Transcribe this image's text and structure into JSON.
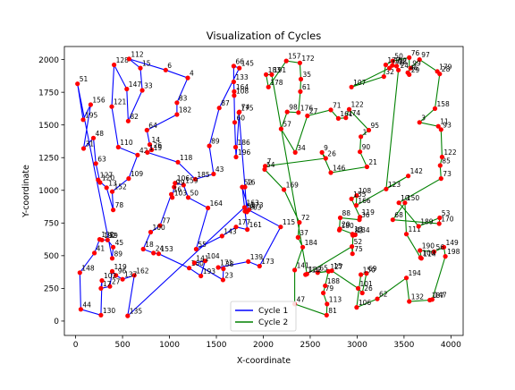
{
  "chart_data": {
    "type": "line",
    "title": "Visualization of Cycles",
    "xlabel": "X-coordinate",
    "ylabel": "Y-coordinate",
    "xlim": [
      -120,
      4130
    ],
    "ylim": [
      -110,
      2100
    ],
    "xticks": [
      0,
      500,
      1000,
      1500,
      2000,
      2500,
      3000,
      3500,
      4000
    ],
    "yticks": [
      0,
      250,
      500,
      750,
      1000,
      1250,
      1500,
      1750,
      2000
    ],
    "grid": false,
    "legend_position": "lower-center",
    "series": [
      {
        "name": "Cycle 1",
        "color": "#0000ff",
        "nodes": [
          [
            "51",
            20,
            1815
          ],
          [
            "195",
            80,
            1540
          ],
          [
            "156",
            160,
            1655
          ],
          [
            "31",
            85,
            1320
          ],
          [
            "48",
            190,
            1400
          ],
          [
            "63",
            215,
            1205
          ],
          [
            "120",
            260,
            1060
          ],
          [
            "127",
            240,
            1080
          ],
          [
            "13",
            330,
            1020
          ],
          [
            "78",
            400,
            850
          ],
          [
            "152",
            390,
            990
          ],
          [
            "109",
            565,
            1090
          ],
          [
            "42",
            660,
            1270
          ],
          [
            "110",
            455,
            1330
          ],
          [
            "121",
            385,
            1640
          ],
          [
            "128",
            410,
            1960
          ],
          [
            "147",
            545,
            1775
          ],
          [
            "82",
            560,
            1530
          ],
          [
            "33",
            710,
            1765
          ],
          [
            "15",
            690,
            1935
          ],
          [
            "112",
            570,
            2005
          ],
          [
            "6",
            960,
            1920
          ],
          [
            "4",
            1195,
            1860
          ],
          [
            "83",
            1080,
            1670
          ],
          [
            "182",
            1080,
            1580
          ],
          [
            "64",
            760,
            1460
          ],
          [
            "14",
            790,
            1350
          ],
          [
            "26",
            810,
            1310
          ],
          [
            "119",
            765,
            1290
          ],
          [
            "118",
            1090,
            1215
          ],
          [
            "185",
            1275,
            1085
          ],
          [
            "43",
            1470,
            1125
          ],
          [
            "89",
            1425,
            1340
          ],
          [
            "87",
            1530,
            1630
          ],
          [
            "145",
            1745,
            1935
          ],
          [
            "66",
            1685,
            1950
          ],
          [
            "133",
            1685,
            1830
          ],
          [
            "164",
            1690,
            1755
          ],
          [
            "108",
            1690,
            1725
          ],
          [
            "60",
            1695,
            1520
          ],
          [
            "186",
            1705,
            1330
          ],
          [
            "196",
            1710,
            1255
          ],
          [
            "74",
            1745,
            1600
          ],
          [
            "175",
            1740,
            1595
          ],
          [
            "16",
            1805,
            1025
          ],
          [
            "163",
            1825,
            835
          ],
          [
            "58",
            1805,
            840
          ],
          [
            "161",
            1830,
            700
          ],
          [
            "177",
            1710,
            720
          ],
          [
            "143",
            1560,
            650
          ],
          [
            "55",
            1285,
            550
          ],
          [
            "164b",
            1410,
            865
          ],
          [
            "50",
            1200,
            945
          ],
          [
            "159",
            1150,
            1040
          ],
          [
            "106",
            1060,
            1055
          ],
          [
            "99",
            1050,
            1025
          ],
          [
            "103",
            1030,
            945
          ],
          [
            "16b",
            1020,
            970
          ],
          [
            "77",
            900,
            730
          ],
          [
            "100",
            800,
            680
          ],
          [
            "18",
            720,
            550
          ],
          [
            "24",
            830,
            520
          ],
          [
            "153",
            885,
            515
          ],
          [
            "160",
            1210,
            405
          ],
          [
            "193",
            1335,
            345
          ],
          [
            "104",
            1380,
            460
          ],
          [
            "141",
            1265,
            445
          ],
          [
            "23",
            1570,
            315
          ],
          [
            "38",
            1575,
            400
          ],
          [
            "171",
            1520,
            410
          ],
          [
            "139",
            1840,
            455
          ],
          [
            "173",
            1960,
            420
          ],
          [
            "115",
            2185,
            720
          ],
          [
            "173b",
            1845,
            850
          ],
          [
            "52",
            1775,
            1025
          ],
          [
            "163b",
            1800,
            870
          ],
          [
            "135",
            555,
            40
          ],
          [
            "162",
            625,
            350
          ],
          [
            "137",
            500,
            320
          ],
          [
            "96",
            430,
            350
          ],
          [
            "119b",
            390,
            380
          ],
          [
            "27",
            365,
            265
          ],
          [
            "17",
            270,
            250
          ],
          [
            "102",
            280,
            310
          ],
          [
            "130",
            270,
            45
          ],
          [
            "44",
            55,
            90
          ],
          [
            "148",
            45,
            370
          ],
          [
            "41",
            200,
            520
          ],
          [
            "132",
            255,
            625
          ],
          [
            "192",
            280,
            620
          ],
          [
            "59",
            340,
            620
          ],
          [
            "45",
            400,
            565
          ],
          [
            "89b",
            390,
            480
          ]
        ]
      },
      {
        "name": "Cycle 2",
        "color": "#008000",
        "nodes": [
          [
            "191",
            2090,
            1885
          ],
          [
            "183",
            2030,
            1885
          ],
          [
            "178",
            2055,
            1790
          ],
          [
            "157",
            2245,
            1990
          ],
          [
            "172",
            2390,
            1975
          ],
          [
            "35",
            2400,
            1850
          ],
          [
            "61",
            2395,
            1755
          ],
          [
            "176",
            2375,
            1595
          ],
          [
            "98",
            2255,
            1600
          ],
          [
            "57",
            2190,
            1470
          ],
          [
            "34",
            2340,
            1290
          ],
          [
            "27",
            2470,
            1570
          ],
          [
            "71",
            2720,
            1615
          ],
          [
            "161",
            2800,
            1550
          ],
          [
            "174",
            2880,
            1555
          ],
          [
            "122",
            2915,
            1620
          ],
          [
            "95",
            3125,
            1460
          ],
          [
            "1",
            3040,
            1410
          ],
          [
            "90",
            3030,
            1295
          ],
          [
            "21",
            3105,
            1180
          ],
          [
            "146",
            2720,
            1135
          ],
          [
            "9",
            2625,
            1290
          ],
          [
            "26",
            2665,
            1245
          ],
          [
            "7",
            2020,
            1185
          ],
          [
            "54",
            2015,
            1160
          ],
          [
            "169",
            2220,
            1005
          ],
          [
            "72",
            2385,
            755
          ],
          [
            "37",
            2370,
            640
          ],
          [
            "184",
            2420,
            565
          ],
          [
            "141",
            2335,
            390
          ],
          [
            "47",
            2335,
            130
          ],
          [
            "81",
            2675,
            45
          ],
          [
            "113",
            2680,
            130
          ],
          [
            "79",
            2640,
            215
          ],
          [
            "188",
            2660,
            270
          ],
          [
            "127",
            2695,
            380
          ],
          [
            "65",
            2580,
            370
          ],
          [
            "15",
            2730,
            385
          ],
          [
            "101",
            3010,
            250
          ],
          [
            "26b",
            3055,
            215
          ],
          [
            "69",
            3100,
            365
          ],
          [
            "150",
            3040,
            355
          ],
          [
            "106",
            2995,
            105
          ],
          [
            "62",
            3215,
            170
          ],
          [
            "194",
            3525,
            330
          ],
          [
            "132",
            3555,
            150
          ],
          [
            "187",
            3775,
            160
          ],
          [
            "147",
            3800,
            165
          ],
          [
            "198",
            3940,
            495
          ],
          [
            "149",
            3925,
            565
          ],
          [
            "56",
            3820,
            530
          ],
          [
            "190",
            3670,
            540
          ],
          [
            "114",
            3685,
            480
          ],
          [
            "100",
            3675,
            485
          ],
          [
            "111",
            3525,
            665
          ],
          [
            "150b",
            3510,
            905
          ],
          [
            "68",
            3380,
            775
          ],
          [
            "170",
            3875,
            745
          ],
          [
            "53",
            3880,
            790
          ],
          [
            "189",
            3655,
            725
          ],
          [
            "10",
            3445,
            905
          ],
          [
            "73",
            3895,
            1090
          ],
          [
            "85",
            3885,
            1190
          ],
          [
            "122b",
            3905,
            1255
          ],
          [
            "93",
            3895,
            1465
          ],
          [
            "11",
            3865,
            1490
          ],
          [
            "3",
            3665,
            1520
          ],
          [
            "158",
            3830,
            1625
          ],
          [
            "28",
            3880,
            1890
          ],
          [
            "179",
            3855,
            1910
          ],
          [
            "97",
            3665,
            2000
          ],
          [
            "99",
            3570,
            1935
          ],
          [
            "46",
            3540,
            1900
          ],
          [
            "29",
            3555,
            1885
          ],
          [
            "76",
            3555,
            2015
          ],
          [
            "50",
            3380,
            1990
          ],
          [
            "177",
            3305,
            1960
          ],
          [
            "32",
            3285,
            1870
          ],
          [
            "107",
            2940,
            1790
          ],
          [
            "126",
            3345,
            1935
          ],
          [
            "192",
            3375,
            1955
          ],
          [
            "18",
            3420,
            1950
          ],
          [
            "24",
            3440,
            1920
          ],
          [
            "123",
            3310,
            1010
          ],
          [
            "142",
            3545,
            1110
          ],
          [
            "166",
            2990,
            885
          ],
          [
            "108",
            2995,
            960
          ],
          [
            "155",
            2940,
            935
          ],
          [
            "119",
            3030,
            795
          ],
          [
            "36",
            3025,
            775
          ],
          [
            "88",
            2820,
            790
          ],
          [
            "180",
            2810,
            695
          ],
          [
            "20",
            2815,
            705
          ],
          [
            "134",
            2980,
            660
          ],
          [
            "13",
            2950,
            665
          ],
          [
            "83",
            2955,
            655
          ],
          [
            "75",
            2950,
            515
          ],
          [
            "52",
            2945,
            570
          ],
          [
            "116",
            2450,
            355
          ],
          [
            "122c",
            2465,
            360
          ]
        ]
      }
    ],
    "node_color": "#ff0000"
  }
}
